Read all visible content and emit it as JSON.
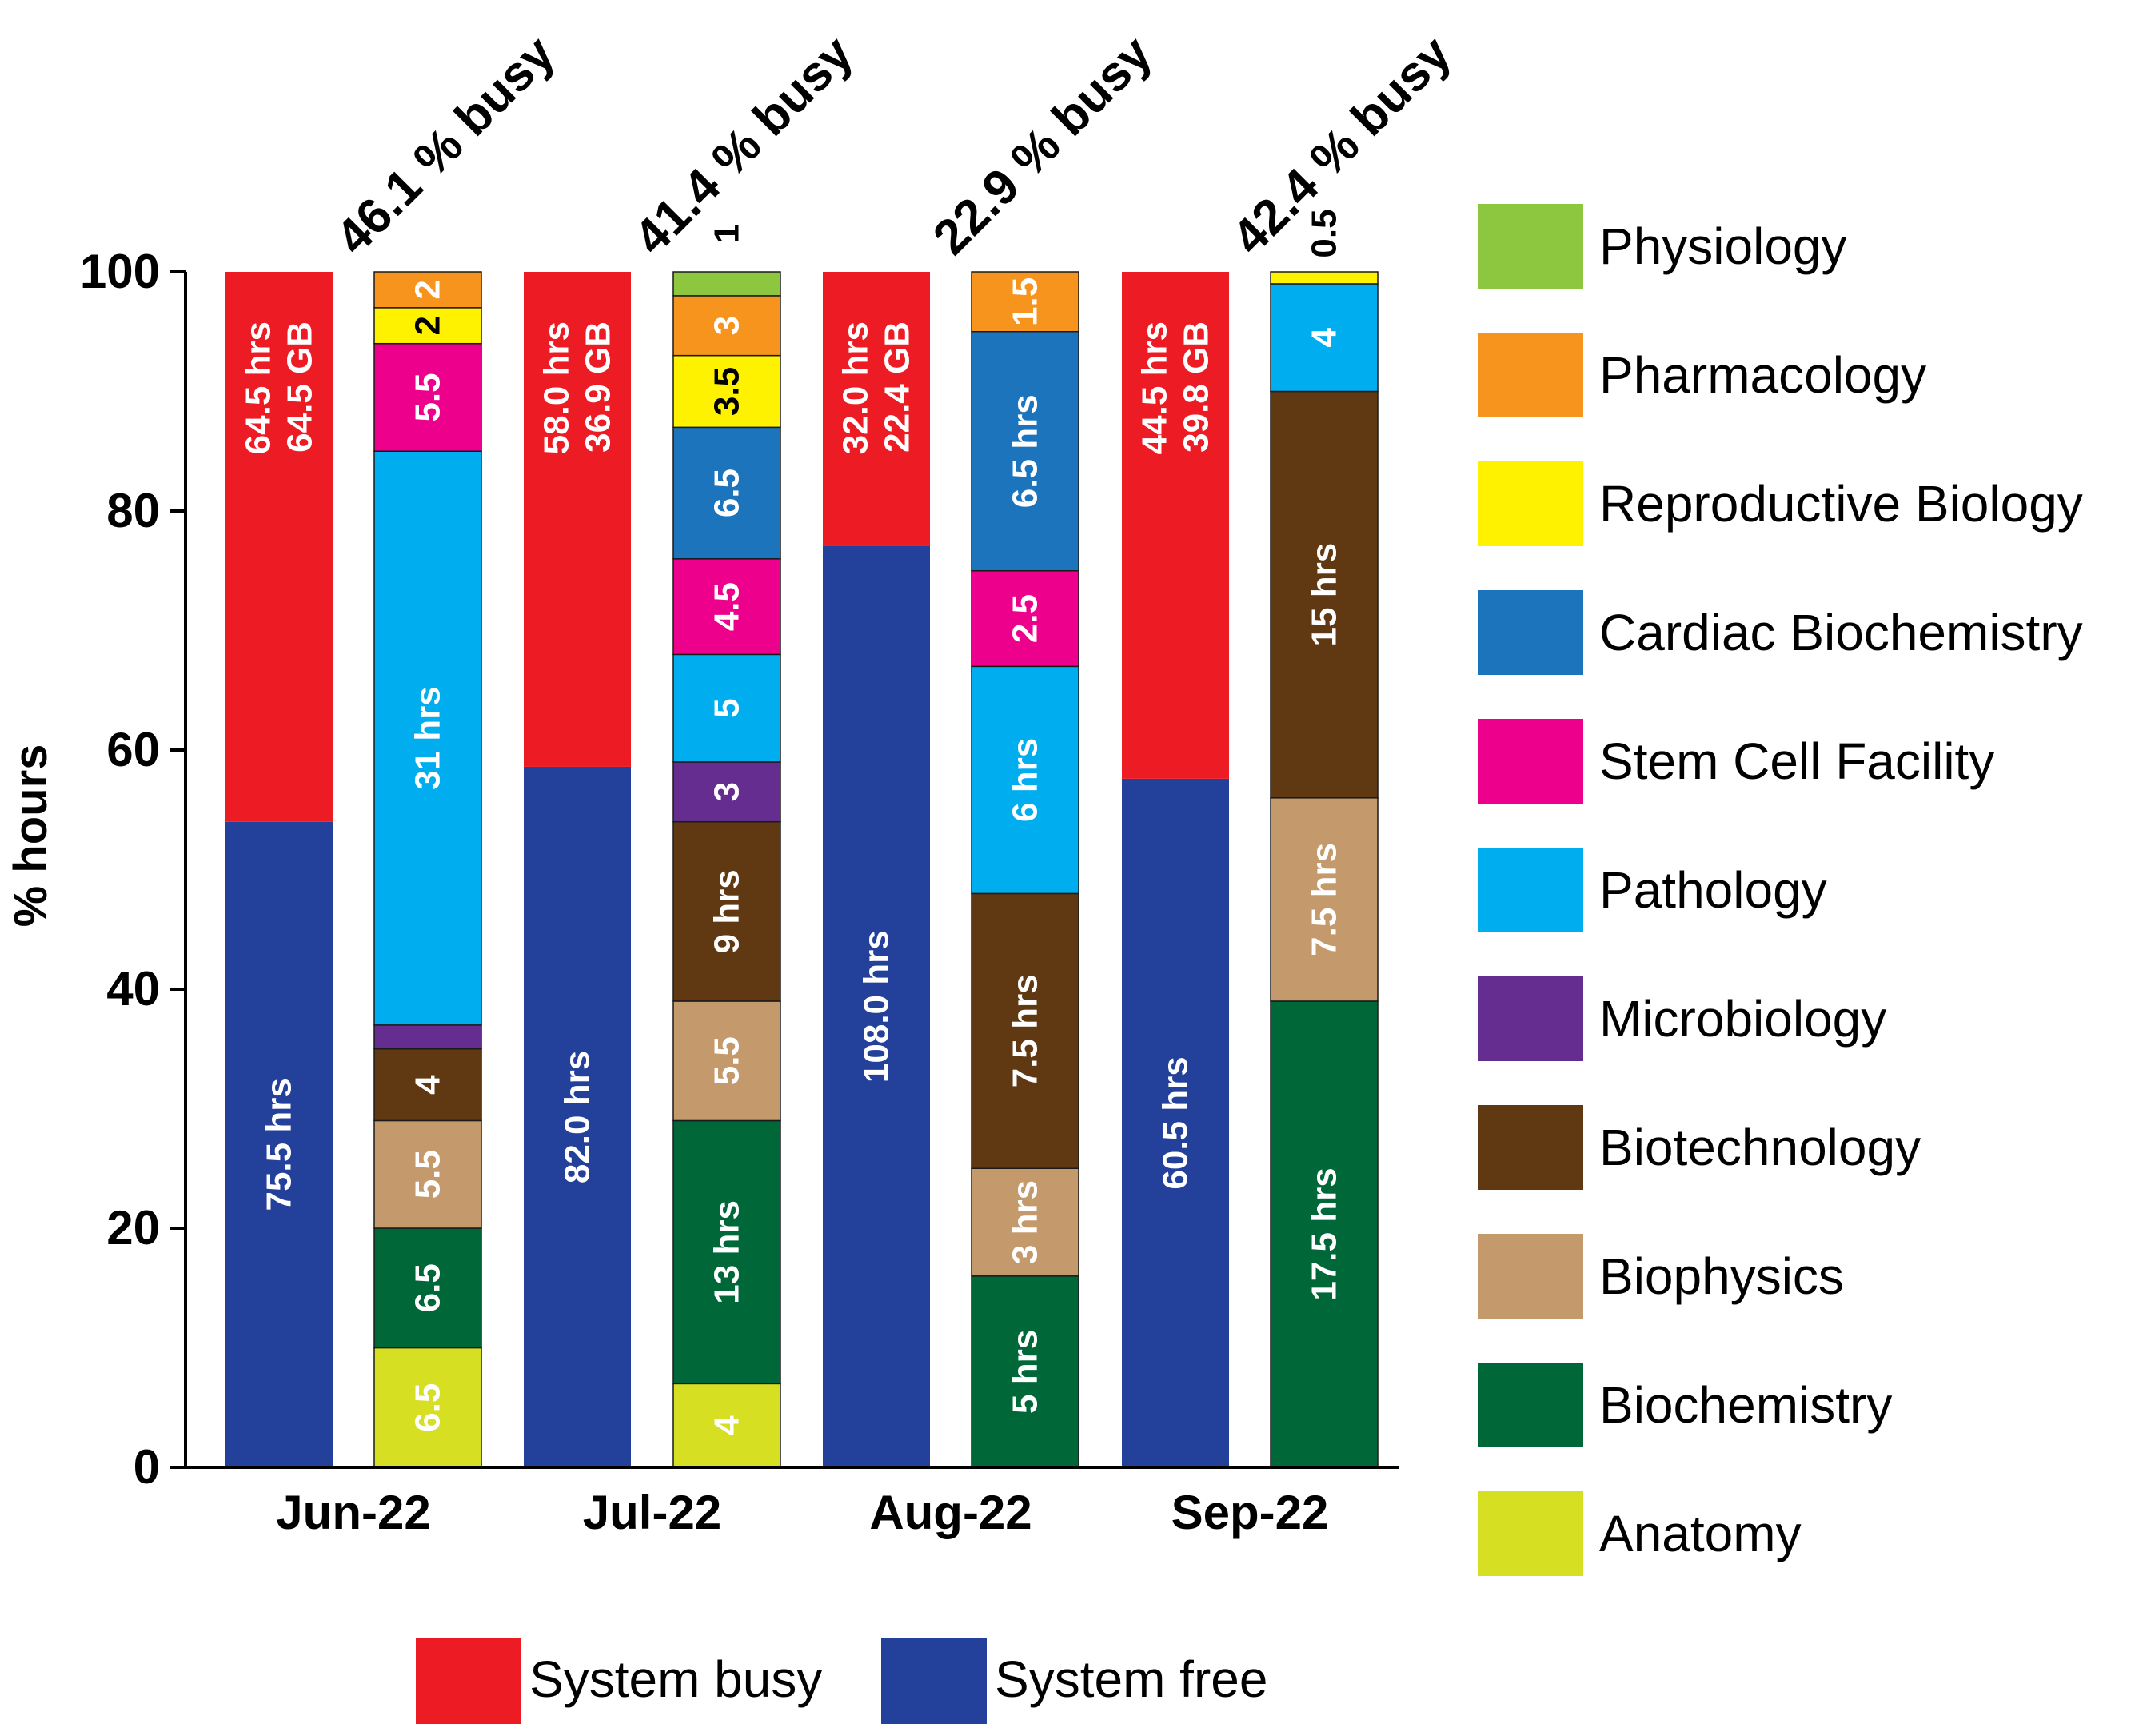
{
  "chart_data": {
    "type": "bar",
    "stacked": true,
    "ylabel": "% hours",
    "ylim": [
      0,
      100
    ],
    "yticks": [
      "0",
      "20",
      "40",
      "60",
      "80",
      "100"
    ],
    "categories": [
      "Jun-22",
      "Jul-22",
      "Aug-22",
      "Sep-22"
    ],
    "busy_labels": [
      "46.1 % busy",
      "41.4 % busy",
      "22.9 % busy",
      "42.4 % busy"
    ],
    "system_bars": [
      {
        "free_pct": 54,
        "free_label": "75.5 hrs",
        "busy_label_1": "64.5 hrs",
        "busy_label_2": "64.5 GB"
      },
      {
        "free_pct": 58.6,
        "free_label": "82.0 hrs",
        "busy_label_1": "58.0 hrs",
        "busy_label_2": "36.9 GB"
      },
      {
        "free_pct": 77.1,
        "free_label": "108.0 hrs",
        "busy_label_1": "32.0 hrs",
        "busy_label_2": "22.4 GB"
      },
      {
        "free_pct": 57.6,
        "free_label": "60.5 hrs",
        "busy_label_1": "44.5 hrs",
        "busy_label_2": "39.8 GB"
      }
    ],
    "department_bars": [
      [
        {
          "dept": "Anatomy",
          "pct": 10,
          "label": "6.5"
        },
        {
          "dept": "Biochemistry",
          "pct": 10,
          "label": "6.5"
        },
        {
          "dept": "Biophysics",
          "pct": 9,
          "label": "5.5"
        },
        {
          "dept": "Biotechnology",
          "pct": 6,
          "label": "4"
        },
        {
          "dept": "Microbiology",
          "pct": 2,
          "label": ""
        },
        {
          "dept": "Pathology",
          "pct": 48,
          "label": "31 hrs"
        },
        {
          "dept": "Stem Cell Facility",
          "pct": 9,
          "label": "5.5"
        },
        {
          "dept": "Reproductive Biology",
          "pct": 3,
          "label": "2"
        },
        {
          "dept": "Pharmacology",
          "pct": 3,
          "label": "2"
        }
      ],
      [
        {
          "dept": "Anatomy",
          "pct": 7,
          "label": "4"
        },
        {
          "dept": "Biochemistry",
          "pct": 22,
          "label": "13 hrs"
        },
        {
          "dept": "Biophysics",
          "pct": 10,
          "label": "5.5"
        },
        {
          "dept": "Biotechnology",
          "pct": 15,
          "label": "9 hrs"
        },
        {
          "dept": "Microbiology",
          "pct": 5,
          "label": "3"
        },
        {
          "dept": "Pathology",
          "pct": 9,
          "label": "5"
        },
        {
          "dept": "Stem Cell Facility",
          "pct": 8,
          "label": "4.5"
        },
        {
          "dept": "Cardiac Biochemistry",
          "pct": 11,
          "label": "6.5"
        },
        {
          "dept": "Reproductive Biology",
          "pct": 6,
          "label": "3.5"
        },
        {
          "dept": "Pharmacology",
          "pct": 5,
          "label": "3"
        },
        {
          "dept": "Physiology",
          "pct": 2,
          "label": "1"
        }
      ],
      [
        {
          "dept": "Biochemistry",
          "pct": 16,
          "label": "5 hrs"
        },
        {
          "dept": "Biophysics",
          "pct": 9,
          "label": "3 hrs"
        },
        {
          "dept": "Biotechnology",
          "pct": 23,
          "label": "7.5 hrs"
        },
        {
          "dept": "Pathology",
          "pct": 19,
          "label": "6 hrs"
        },
        {
          "dept": "Stem Cell Facility",
          "pct": 8,
          "label": "2.5"
        },
        {
          "dept": "Cardiac Biochemistry",
          "pct": 20,
          "label": "6.5 hrs"
        },
        {
          "dept": "Pharmacology",
          "pct": 5,
          "label": "1.5"
        }
      ],
      [
        {
          "dept": "Biochemistry",
          "pct": 39,
          "label": "17.5 hrs"
        },
        {
          "dept": "Biophysics",
          "pct": 17,
          "label": "7.5 hrs"
        },
        {
          "dept": "Biotechnology",
          "pct": 34,
          "label": "15 hrs"
        },
        {
          "dept": "Pathology",
          "pct": 9,
          "label": "4"
        },
        {
          "dept": "Reproductive Biology",
          "pct": 1,
          "label": "0.5"
        }
      ]
    ],
    "legend_departments": [
      {
        "name": "Physiology",
        "color": "#8dc63f"
      },
      {
        "name": "Pharmacology",
        "color": "#f7941d"
      },
      {
        "name": "Reproductive Biology",
        "color": "#fff200"
      },
      {
        "name": "Cardiac Biochemistry",
        "color": "#1c75bc"
      },
      {
        "name": "Stem Cell Facility",
        "color": "#ec008c"
      },
      {
        "name": "Pathology",
        "color": "#00aeef"
      },
      {
        "name": "Microbiology",
        "color": "#662d91"
      },
      {
        "name": "Biotechnology",
        "color": "#603913"
      },
      {
        "name": "Biophysics",
        "color": "#c49a6c"
      },
      {
        "name": "Biochemistry",
        "color": "#006838"
      },
      {
        "name": "Anatomy",
        "color": "#d7df23"
      }
    ],
    "legend_system": [
      {
        "name": "System busy",
        "color": "#ed1c24"
      },
      {
        "name": "System free",
        "color": "#23409a"
      }
    ],
    "dark_label_depts": [
      "Reproductive Biology"
    ]
  }
}
